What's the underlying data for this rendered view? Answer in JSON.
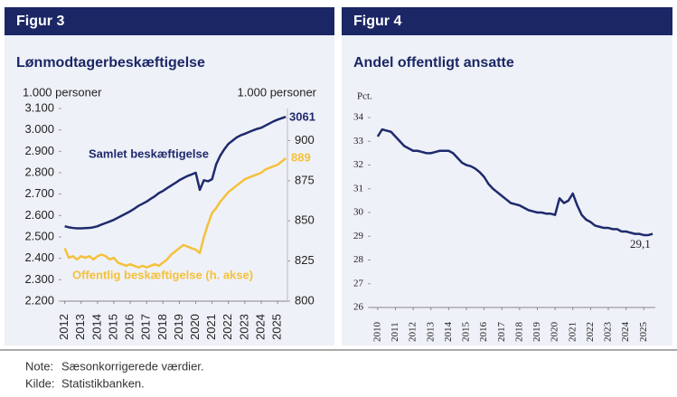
{
  "chart_data": [
    {
      "type": "line",
      "label": "Figur 3",
      "title": "Lønmodtagerbeskæftigelse",
      "ylabel": "1.000 personer",
      "y2label": "1.000 personer",
      "x": [
        2012,
        2012.25,
        2012.5,
        2012.75,
        2013,
        2013.25,
        2013.5,
        2013.75,
        2014,
        2014.25,
        2014.5,
        2014.75,
        2015,
        2015.25,
        2015.5,
        2015.75,
        2016,
        2016.25,
        2016.5,
        2016.75,
        2017,
        2017.25,
        2017.5,
        2017.75,
        2018,
        2018.25,
        2018.5,
        2018.75,
        2019,
        2019.25,
        2019.5,
        2019.75,
        2020,
        2020.25,
        2020.5,
        2020.75,
        2021,
        2021.25,
        2021.5,
        2021.75,
        2022,
        2022.25,
        2022.5,
        2022.75,
        2023,
        2023.25,
        2023.5,
        2023.75,
        2024,
        2024.25,
        2024.5,
        2024.75,
        2025,
        2025.25,
        2025.5
      ],
      "series": [
        {
          "name": "Samlet beskæftigelse",
          "color": "#1f2a6e",
          "values": [
            2550,
            2545,
            2542,
            2540,
            2540,
            2541,
            2542,
            2545,
            2550,
            2558,
            2565,
            2572,
            2580,
            2590,
            2600,
            2610,
            2620,
            2632,
            2645,
            2655,
            2665,
            2678,
            2690,
            2705,
            2715,
            2728,
            2740,
            2752,
            2765,
            2775,
            2785,
            2792,
            2800,
            2720,
            2765,
            2760,
            2770,
            2840,
            2880,
            2910,
            2935,
            2950,
            2965,
            2975,
            2982,
            2990,
            2998,
            3005,
            3010,
            3020,
            3030,
            3040,
            3048,
            3055,
            3061
          ]
        },
        {
          "name": "Offentlig beskæftigelse (h. akse)",
          "color": "#f5c13b",
          "axis": "y2",
          "values": [
            833,
            827,
            828,
            826,
            828,
            827,
            828,
            826,
            828,
            829,
            828,
            826,
            827,
            824,
            823,
            822,
            823,
            822,
            821,
            822,
            821,
            822,
            823,
            822,
            824,
            826,
            829,
            831,
            833,
            835,
            834,
            833,
            832,
            830,
            840,
            848,
            855,
            858,
            862,
            865,
            868,
            870,
            872,
            874,
            876,
            877,
            878,
            879,
            880,
            882,
            883,
            884,
            885,
            887,
            889
          ]
        }
      ],
      "xlim": [
        2011.8,
        2025.6
      ],
      "xticks": [
        2012,
        2013,
        2014,
        2015,
        2016,
        2017,
        2018,
        2019,
        2020,
        2021,
        2022,
        2023,
        2024,
        2025
      ],
      "ylim": [
        2200,
        3100
      ],
      "yticks": [
        {
          "value": 2200,
          "label": "2.200"
        },
        {
          "value": 2300,
          "label": "2.300"
        },
        {
          "value": 2400,
          "label": "2.400"
        },
        {
          "value": 2500,
          "label": "2.500"
        },
        {
          "value": 2600,
          "label": "2.600"
        },
        {
          "value": 2700,
          "label": "2.700"
        },
        {
          "value": 2800,
          "label": "2.800"
        },
        {
          "value": 2900,
          "label": "2.900"
        },
        {
          "value": 3000,
          "label": "3.000"
        },
        {
          "value": 3100,
          "label": "3.100"
        }
      ],
      "y2lim": [
        800,
        920
      ],
      "y2ticks": [
        800,
        825,
        850,
        875,
        900
      ],
      "grid": false
    },
    {
      "type": "line",
      "label": "Figur 4",
      "title": "Andel offentligt ansatte",
      "ylabel": "Pct.",
      "x": [
        2010,
        2010.25,
        2010.5,
        2010.75,
        2011,
        2011.25,
        2011.5,
        2011.75,
        2012,
        2012.25,
        2012.5,
        2012.75,
        2013,
        2013.25,
        2013.5,
        2013.75,
        2014,
        2014.25,
        2014.5,
        2014.75,
        2015,
        2015.25,
        2015.5,
        2015.75,
        2016,
        2016.25,
        2016.5,
        2016.75,
        2017,
        2017.25,
        2017.5,
        2017.75,
        2018,
        2018.25,
        2018.5,
        2018.75,
        2019,
        2019.25,
        2019.5,
        2019.75,
        2020,
        2020.25,
        2020.5,
        2020.75,
        2021,
        2021.25,
        2021.5,
        2021.75,
        2022,
        2022.25,
        2022.5,
        2022.75,
        2023,
        2023.25,
        2023.5,
        2023.75,
        2024,
        2024.25,
        2024.5,
        2024.75,
        2025,
        2025.25,
        2025.5
      ],
      "series": [
        {
          "name": "Andel offentligt ansatte",
          "color": "#1f2a6e",
          "values": [
            33.2,
            33.5,
            33.45,
            33.4,
            33.2,
            33.0,
            32.8,
            32.7,
            32.6,
            32.6,
            32.55,
            32.5,
            32.5,
            32.55,
            32.6,
            32.6,
            32.6,
            32.5,
            32.3,
            32.1,
            32.0,
            31.95,
            31.85,
            31.7,
            31.5,
            31.2,
            31.0,
            30.85,
            30.7,
            30.55,
            30.4,
            30.35,
            30.3,
            30.2,
            30.1,
            30.05,
            30.0,
            30.0,
            29.95,
            29.95,
            29.9,
            30.6,
            30.4,
            30.5,
            30.8,
            30.3,
            29.9,
            29.7,
            29.6,
            29.45,
            29.4,
            29.35,
            29.35,
            29.3,
            29.3,
            29.2,
            29.2,
            29.15,
            29.1,
            29.1,
            29.05,
            29.05,
            29.1
          ],
          "value_labels": [
            null,
            null,
            null,
            null,
            null,
            null,
            null,
            null,
            null,
            null,
            null,
            null,
            null,
            null,
            null,
            null,
            null,
            null,
            null,
            null,
            null,
            null,
            null,
            null,
            null,
            null,
            null,
            null,
            null,
            null,
            null,
            null,
            null,
            null,
            null,
            null,
            null,
            null,
            null,
            null,
            null,
            null,
            null,
            null,
            null,
            null,
            null,
            null,
            null,
            null,
            null,
            null,
            null,
            null,
            null,
            null,
            null,
            null,
            null,
            null,
            null,
            null,
            "29,1"
          ]
        }
      ],
      "xlim": [
        2009.6,
        2025.65
      ],
      "xticks": [
        2010,
        2011,
        2012,
        2013,
        2014,
        2015,
        2016,
        2017,
        2018,
        2019,
        2020,
        2021,
        2022,
        2023,
        2024,
        2025
      ],
      "ylim": [
        26,
        34
      ],
      "yticks": [
        26,
        27,
        28,
        29,
        30,
        31,
        32,
        33,
        34
      ],
      "grid": false
    }
  ],
  "footer": {
    "note_label": "Note:",
    "note": "Sæsonkorrigerede værdier.",
    "source_label": "Kilde:",
    "source": "Statistikbanken."
  }
}
